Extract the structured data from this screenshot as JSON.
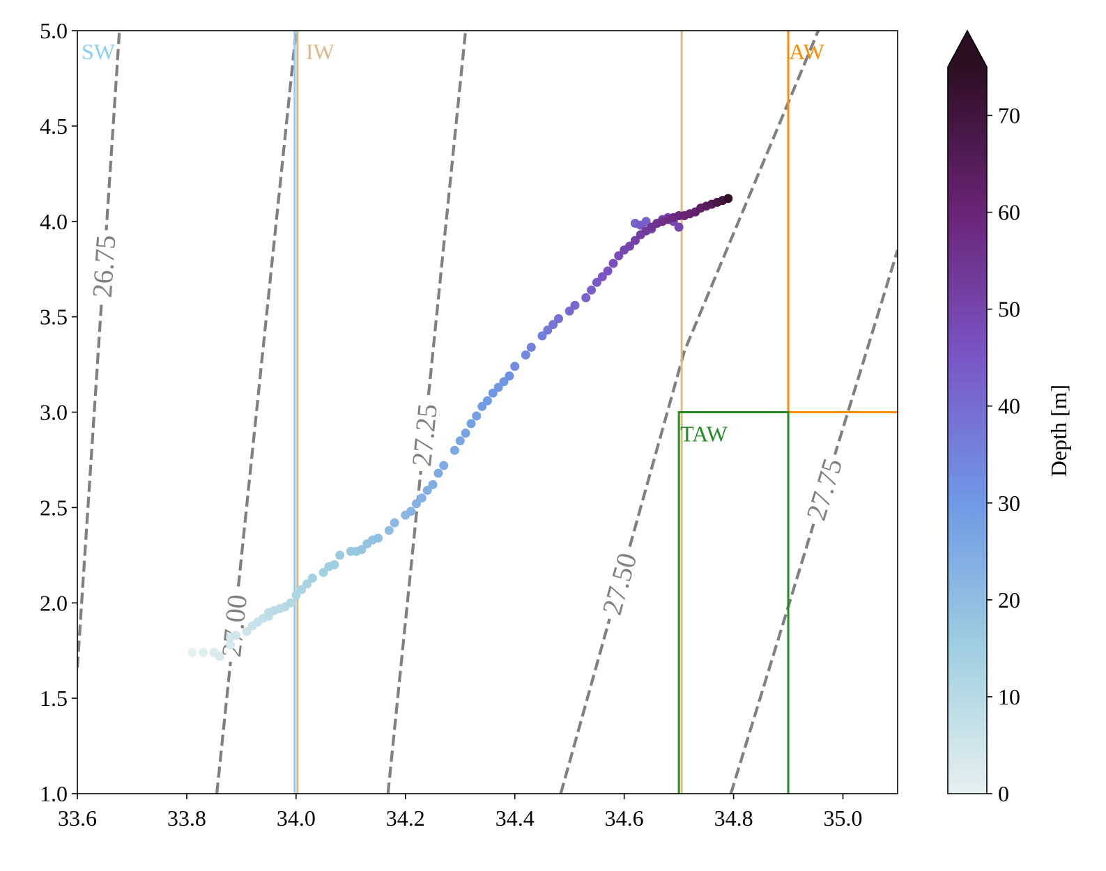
{
  "chart_data": {
    "type": "scatter",
    "title": "",
    "xlabel": "",
    "ylabel": "",
    "xlim": [
      33.6,
      35.1
    ],
    "ylim": [
      1.0,
      5.0
    ],
    "x_ticks": [
      33.6,
      33.8,
      34.0,
      34.2,
      34.4,
      34.6,
      34.8,
      35.0
    ],
    "x_tick_labels": [
      "33.6",
      "33.8",
      "34.0",
      "34.2",
      "34.4",
      "34.6",
      "34.8",
      "35.0"
    ],
    "y_ticks": [
      1.0,
      1.5,
      2.0,
      2.5,
      3.0,
      3.5,
      4.0,
      4.5,
      5.0
    ],
    "y_tick_labels": [
      "1.0",
      "1.5",
      "2.0",
      "2.5",
      "3.0",
      "3.5",
      "4.0",
      "4.5",
      "5.0"
    ],
    "grid": false,
    "colorbar": {
      "label": "Depth [m]",
      "range": [
        0,
        75
      ],
      "ticks": [
        0,
        10,
        20,
        30,
        40,
        50,
        60,
        70
      ],
      "tick_labels": [
        "0",
        "10",
        "20",
        "30",
        "40",
        "50",
        "60",
        "70"
      ],
      "extend": "max",
      "colors": [
        "#e6f0f0",
        "#9fcfe0",
        "#6f99e5",
        "#7a56c6",
        "#6a2476",
        "#2c0e22"
      ]
    },
    "density_contours": [
      {
        "label": "26.75",
        "points": [
          [
            33.6,
            1.66
          ],
          [
            33.677,
            5.0
          ]
        ]
      },
      {
        "label": "27.00",
        "points": [
          [
            33.855,
            1.0
          ],
          [
            34.0,
            5.0
          ]
        ]
      },
      {
        "label": "27.25",
        "points": [
          [
            34.168,
            1.0
          ],
          [
            34.31,
            5.0
          ]
        ]
      },
      {
        "label": "27.50",
        "points": [
          [
            34.484,
            1.0
          ],
          [
            34.71,
            3.32
          ],
          [
            34.955,
            5.0
          ]
        ]
      },
      {
        "label": "27.75",
        "points": [
          [
            34.795,
            1.0
          ],
          [
            35.1,
            3.85
          ]
        ]
      }
    ],
    "contour_color": "#808080",
    "water_masses": [
      {
        "label": "SW",
        "color": "#87cefa"
      },
      {
        "label": "IW",
        "color": "#deb887"
      },
      {
        "label": "AW",
        "color": "#ff8c00"
      },
      {
        "label": "TAW",
        "color": "#228b22"
      }
    ],
    "water_mass_lines": {
      "SW_IW_boundary_x": 34.0,
      "IW_right_x": 34.7,
      "AW_x": 34.9,
      "AW_T": 3.0,
      "TAW_x": [
        34.7,
        34.9
      ],
      "TAW_T": 3.0
    },
    "series": [
      {
        "x": [
          33.81,
          33.83,
          33.85,
          33.86,
          33.85,
          33.88,
          33.88,
          33.89,
          33.91,
          33.92,
          33.93,
          33.94,
          33.95,
          33.95,
          33.96,
          33.97,
          33.98,
          33.99,
          34.0,
          34.01,
          34.02,
          34.03,
          34.05,
          34.06,
          34.07,
          34.08,
          34.1,
          34.11,
          34.12,
          34.13,
          34.14,
          34.15,
          34.17,
          34.18,
          34.2,
          34.21,
          34.22,
          34.23,
          34.24,
          34.25,
          34.26,
          34.27,
          34.29,
          34.3,
          34.31,
          34.32,
          34.33,
          34.34,
          34.35,
          34.36,
          34.37,
          34.38,
          34.39,
          34.4,
          34.42,
          34.43,
          34.45,
          34.46,
          34.47,
          34.48,
          34.5,
          34.51,
          34.53,
          34.54,
          34.55,
          34.56,
          34.57,
          34.58,
          34.59,
          34.6,
          34.61,
          34.62,
          34.63,
          34.64,
          34.65,
          34.66,
          34.67,
          34.68,
          34.69,
          34.7,
          34.71,
          34.72,
          34.73,
          34.74,
          34.75,
          34.76,
          34.77,
          34.78,
          34.79
        ],
        "y": [
          1.74,
          1.74,
          1.74,
          1.72,
          1.74,
          1.78,
          1.82,
          1.83,
          1.85,
          1.88,
          1.9,
          1.92,
          1.93,
          1.95,
          1.96,
          1.97,
          1.98,
          2.0,
          2.04,
          2.07,
          2.1,
          2.13,
          2.16,
          2.19,
          2.2,
          2.25,
          2.27,
          2.27,
          2.28,
          2.31,
          2.33,
          2.34,
          2.38,
          2.42,
          2.46,
          2.48,
          2.52,
          2.55,
          2.59,
          2.62,
          2.68,
          2.72,
          2.8,
          2.85,
          2.89,
          2.94,
          2.98,
          3.03,
          3.06,
          3.1,
          3.13,
          3.16,
          3.19,
          3.24,
          3.3,
          3.34,
          3.4,
          3.43,
          3.46,
          3.49,
          3.53,
          3.56,
          3.6,
          3.64,
          3.68,
          3.71,
          3.74,
          3.78,
          3.82,
          3.85,
          3.87,
          3.9,
          3.93,
          3.95,
          3.97,
          3.99,
          4.0,
          4.01,
          4.02,
          4.03,
          4.03,
          4.04,
          4.05,
          4.07,
          4.08,
          4.09,
          4.1,
          4.11,
          4.12
        ],
        "depth": [
          0.5,
          1,
          2,
          3,
          1.5,
          3.5,
          4,
          4.5,
          5,
          6,
          7,
          7.5,
          8,
          8.5,
          9,
          9.5,
          10,
          11,
          12,
          12.5,
          13,
          14,
          14.5,
          15,
          15.5,
          16,
          17,
          17.5,
          18,
          18.5,
          19,
          19.5,
          20,
          21,
          22,
          22.5,
          23,
          23.5,
          24,
          24.5,
          25,
          25.5,
          26,
          26.5,
          27,
          28,
          28.5,
          29,
          29.5,
          30,
          30.5,
          31,
          32,
          33,
          34,
          35,
          36,
          37,
          38,
          39,
          40,
          41,
          42,
          43,
          44,
          45,
          46,
          47,
          48,
          49,
          50,
          51,
          52,
          53,
          54,
          55,
          56,
          57,
          58,
          59,
          60,
          61,
          62,
          63,
          64,
          66,
          68,
          70,
          74
        ]
      },
      {
        "x": [
          34.62,
          34.64,
          34.63,
          34.65,
          34.66,
          34.67,
          34.68,
          34.69,
          34.7
        ],
        "y": [
          3.99,
          4.0,
          3.98,
          3.96,
          3.99,
          4.01,
          4.02,
          4.0,
          3.97
        ],
        "depth": [
          42,
          43,
          44,
          45,
          46,
          47,
          48,
          49,
          50
        ]
      }
    ]
  }
}
